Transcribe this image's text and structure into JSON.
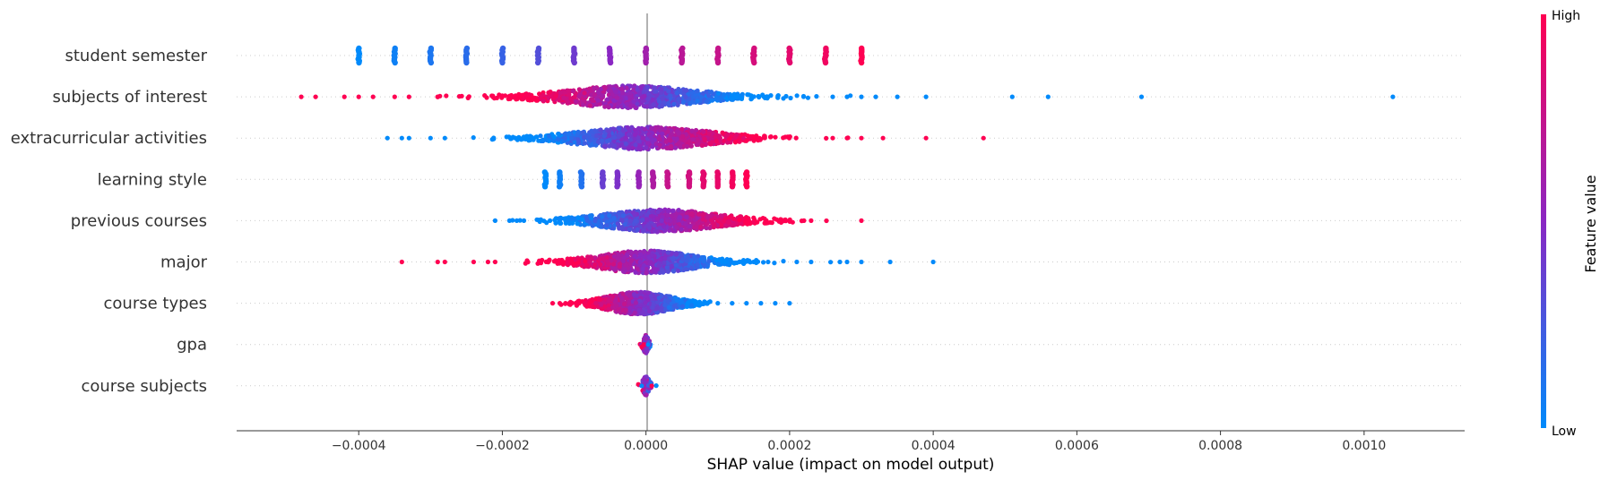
{
  "chart_data": {
    "type": "scatter",
    "subtype": "shap-beeswarm",
    "xlabel": "SHAP value (impact on model output)",
    "xlim": [
      -0.00057,
      0.00114
    ],
    "xticks": [
      -0.0004,
      -0.0002,
      0.0,
      0.0002,
      0.0004,
      0.0006,
      0.0008,
      0.001
    ],
    "xtick_labels": [
      "−0.0004",
      "−0.0002",
      "0.0000",
      "0.0002",
      "0.0004",
      "0.0006",
      "0.0008",
      "0.0010"
    ],
    "zero_line": true,
    "row_grid": "dotted",
    "colorbar": {
      "title": "Feature value",
      "high_label": "High",
      "low_label": "Low",
      "low_color": "#008afb",
      "mid_color": "#8a27c3",
      "high_color": "#ff0052"
    },
    "features": [
      {
        "name": "student semester",
        "style": "discrete",
        "points": [
          [
            -0.0004,
            0.0
          ],
          [
            -0.00035,
            0.05
          ],
          [
            -0.0003,
            0.1
          ],
          [
            -0.00025,
            0.15
          ],
          [
            -0.0002,
            0.2
          ],
          [
            -0.00015,
            0.3
          ],
          [
            -0.0001,
            0.4
          ],
          [
            -5e-05,
            0.5
          ],
          [
            0.0,
            0.6
          ],
          [
            5e-05,
            0.7
          ],
          [
            0.0001,
            0.75
          ],
          [
            0.00015,
            0.82
          ],
          [
            0.0002,
            0.88
          ],
          [
            0.00025,
            0.94
          ],
          [
            0.0003,
            1.0
          ]
        ]
      },
      {
        "name": "subjects of interest",
        "style": "continuous",
        "center": -2e-05,
        "spread": 8e-05,
        "outliers": [
          [
            -0.00048,
            1.0
          ],
          [
            -0.00046,
            1.0
          ],
          [
            -0.00042,
            1.0
          ],
          [
            -0.0004,
            1.0
          ],
          [
            -0.00038,
            1.0
          ],
          [
            -0.00035,
            1.0
          ],
          [
            -0.00033,
            1.0
          ],
          [
            -0.00029,
            1.0
          ],
          [
            0.00026,
            0.0
          ],
          [
            0.00028,
            0.0
          ],
          [
            0.0003,
            0.0
          ],
          [
            0.00032,
            0.0
          ],
          [
            0.00035,
            0.0
          ],
          [
            0.00039,
            0.0
          ],
          [
            0.00051,
            0.0
          ],
          [
            0.00056,
            0.0
          ],
          [
            0.00069,
            0.0
          ],
          [
            0.00104,
            0.0
          ]
        ]
      },
      {
        "name": "extracurricular activities",
        "style": "continuous",
        "center": 0.0,
        "spread": 8e-05,
        "outliers": [
          [
            -0.00036,
            0.0
          ],
          [
            -0.00034,
            0.0
          ],
          [
            -0.00033,
            0.0
          ],
          [
            -0.0003,
            0.0
          ],
          [
            -0.00028,
            0.0
          ],
          [
            0.00026,
            1.0
          ],
          [
            0.00028,
            1.0
          ],
          [
            0.0003,
            1.0
          ],
          [
            0.00033,
            1.0
          ],
          [
            0.00039,
            1.0
          ],
          [
            0.00047,
            1.0
          ]
        ]
      },
      {
        "name": "learning style",
        "style": "discrete",
        "points": [
          [
            -0.00014,
            0.0
          ],
          [
            -0.00012,
            0.05
          ],
          [
            -9e-05,
            0.12
          ],
          [
            -6e-05,
            0.38
          ],
          [
            -4e-05,
            0.45
          ],
          [
            -1e-05,
            0.55
          ],
          [
            1e-05,
            0.65
          ],
          [
            3e-05,
            0.75
          ],
          [
            6e-05,
            0.8
          ],
          [
            8e-05,
            0.88
          ],
          [
            0.0001,
            0.9
          ],
          [
            0.00012,
            0.95
          ],
          [
            0.00014,
            1.0
          ]
        ]
      },
      {
        "name": "previous courses",
        "style": "continuous",
        "center": 2e-05,
        "spread": 7e-05,
        "outliers": [
          [
            -0.00021,
            0.0
          ],
          [
            -0.00019,
            0.0
          ],
          [
            -0.00017,
            0.0
          ],
          [
            0.0002,
            1.0
          ],
          [
            0.00022,
            1.0
          ],
          [
            0.00023,
            1.0
          ],
          [
            0.0003,
            1.0
          ]
        ]
      },
      {
        "name": "major",
        "style": "continuous",
        "center": 0.0,
        "spread": 6e-05,
        "outliers": [
          [
            -0.00034,
            1.0
          ],
          [
            -0.00029,
            1.0
          ],
          [
            -0.00028,
            1.0
          ],
          [
            -0.00024,
            1.0
          ],
          [
            -0.00022,
            1.0
          ],
          [
            -0.00021,
            1.0
          ],
          [
            0.00011,
            0.0
          ],
          [
            0.00013,
            0.0
          ],
          [
            0.00015,
            0.0
          ],
          [
            0.00017,
            0.0
          ],
          [
            0.00021,
            0.0
          ],
          [
            0.00023,
            0.0
          ],
          [
            0.00027,
            0.0
          ],
          [
            0.00028,
            0.0
          ],
          [
            0.0003,
            0.0
          ],
          [
            0.00034,
            0.0
          ],
          [
            0.0004,
            0.0
          ]
        ]
      },
      {
        "name": "course types",
        "style": "continuous",
        "center": -1e-05,
        "spread": 4e-05,
        "outliers": [
          [
            -0.00013,
            1.0
          ],
          [
            -0.00012,
            1.0
          ],
          [
            0.0001,
            0.0
          ],
          [
            0.00012,
            0.0
          ],
          [
            0.00014,
            0.0
          ],
          [
            0.00016,
            0.0
          ],
          [
            0.00018,
            0.0
          ],
          [
            0.0002,
            0.0
          ]
        ]
      },
      {
        "name": "gpa",
        "style": "tight",
        "center": 0.0,
        "spread": 3e-06,
        "outliers": [
          [
            -3e-06,
            1.0
          ],
          [
            3e-06,
            0.0
          ]
        ]
      },
      {
        "name": "course subjects",
        "style": "tight",
        "center": 0.0,
        "spread": 4e-06,
        "outliers": [
          [
            -6e-06,
            0.0
          ],
          [
            8e-06,
            1.0
          ]
        ]
      }
    ]
  }
}
